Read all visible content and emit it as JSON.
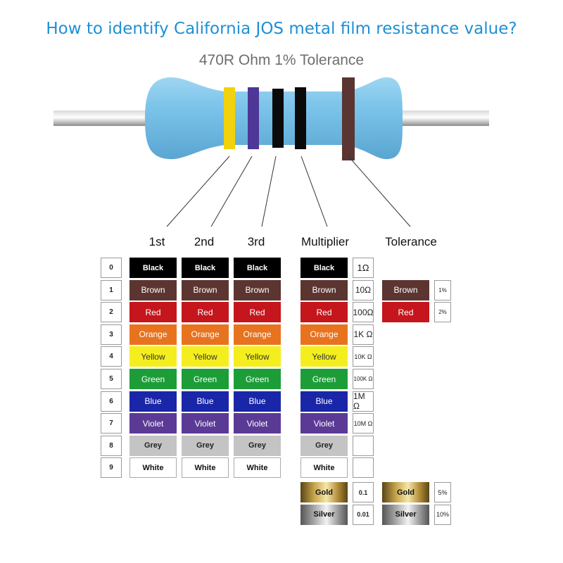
{
  "title": "How to identify California JOS metal film resistance value?",
  "subtitle": "470R Ohm 1% Tolerance",
  "resistor": {
    "bands": [
      {
        "name": "Yellow",
        "color": "#f2d20c"
      },
      {
        "name": "Violet",
        "color": "#4e3796"
      },
      {
        "name": "Black",
        "color": "#0a0a0a"
      },
      {
        "name": "Black",
        "color": "#0a0a0a"
      },
      {
        "name": "Brown",
        "color": "#5a3531"
      }
    ],
    "body_color": "#7cc4ea"
  },
  "columns": {
    "first": "1st",
    "second": "2nd",
    "third": "3rd",
    "multiplier": "Multiplier",
    "tolerance": "Tolerance"
  },
  "digits": [
    "0",
    "1",
    "2",
    "3",
    "4",
    "5",
    "6",
    "7",
    "8",
    "9"
  ],
  "colors": [
    {
      "name": "Black",
      "bg": "#000000",
      "fg": "#ffffff",
      "bold": true
    },
    {
      "name": "Brown",
      "bg": "#5c3530",
      "fg": "#ffffff",
      "bold": false
    },
    {
      "name": "Red",
      "bg": "#c4161c",
      "fg": "#ffffff",
      "bold": false
    },
    {
      "name": "Orange",
      "bg": "#e8731f",
      "fg": "#ffffff",
      "bold": false
    },
    {
      "name": "Yellow",
      "bg": "#f4ee1f",
      "fg": "#333333",
      "bold": false
    },
    {
      "name": "Green",
      "bg": "#1c9d38",
      "fg": "#ffffff",
      "bold": false
    },
    {
      "name": "Blue",
      "bg": "#1a26a8",
      "fg": "#ffffff",
      "bold": false
    },
    {
      "name": "Violet",
      "bg": "#5b3a96",
      "fg": "#ffffff",
      "bold": false
    },
    {
      "name": "Grey",
      "bg": "#c4c4c4",
      "fg": "#222222",
      "bold": true
    },
    {
      "name": "White",
      "bg": "#ffffff",
      "fg": "#111111",
      "bold": true
    }
  ],
  "multiplier_values": [
    "1Ω",
    "10Ω",
    "100Ω",
    "1K Ω",
    "10K Ω",
    "100K Ω",
    "1M Ω",
    "10M Ω",
    "",
    ""
  ],
  "multiplier_extra": [
    {
      "name": "Gold",
      "value": "0.1"
    },
    {
      "name": "Silver",
      "value": "0.01"
    }
  ],
  "tolerance": [
    {
      "name": "Brown",
      "value": "1%",
      "bg": "#5c3530",
      "fg": "#ffffff"
    },
    {
      "name": "Red",
      "value": "2%",
      "bg": "#c4161c",
      "fg": "#ffffff"
    }
  ],
  "tolerance_extra": [
    {
      "name": "Gold",
      "value": "5%"
    },
    {
      "name": "Silver",
      "value": "10%"
    }
  ]
}
